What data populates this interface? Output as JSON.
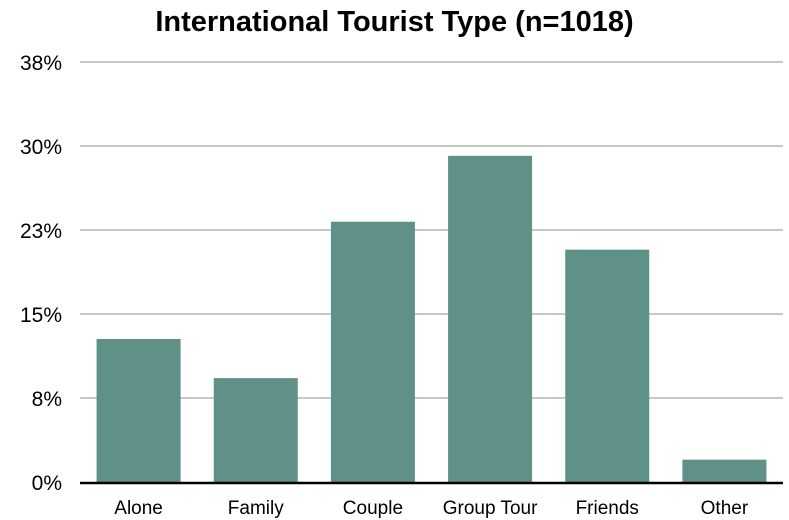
{
  "chart_data": {
    "type": "bar",
    "title": "International Tourist Type (n=1018)",
    "xlabel": "",
    "ylabel": "",
    "categories": [
      "Alone",
      "Family",
      "Couple",
      "Group Tour",
      "Friends",
      "Other"
    ],
    "values": [
      12.8,
      9.3,
      23.3,
      29.2,
      20.8,
      2.0
    ],
    "y_ticks": [
      "0%",
      "8%",
      "15%",
      "23%",
      "30%",
      "38%"
    ],
    "ylim": [
      0,
      37.6
    ],
    "grid": true,
    "legend": "none",
    "bar_color": "#5f9189",
    "grid_color": "#c8c8c8",
    "axis_color": "#000000"
  }
}
